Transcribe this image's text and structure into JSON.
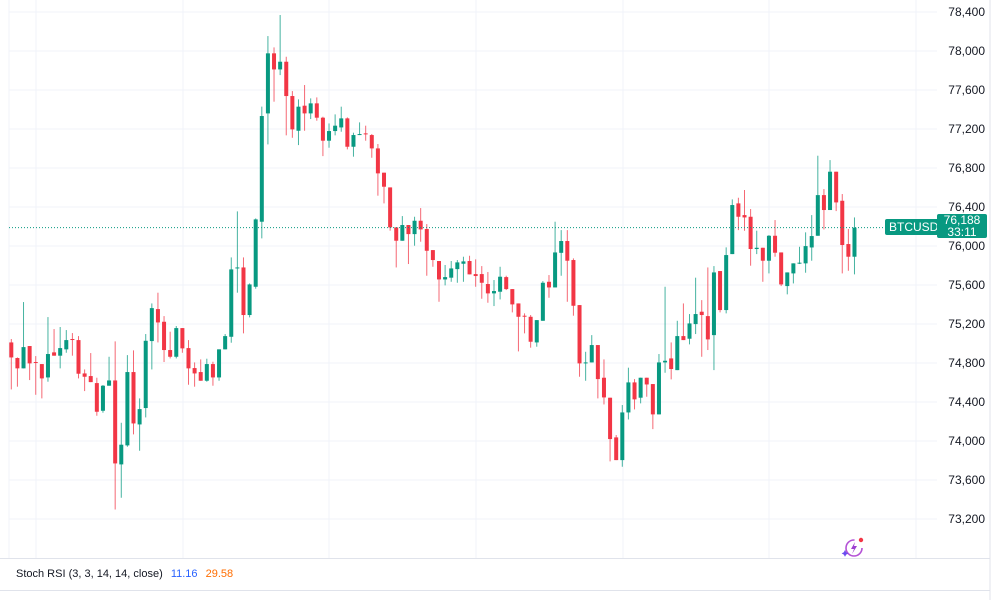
{
  "chart_data": {
    "type": "candlestick",
    "symbol": "BTCUSD",
    "last_price": "76,188",
    "countdown": "33:11",
    "ylim": [
      73200,
      78400
    ],
    "y_ticks": [
      "78,400",
      "78,000",
      "77,600",
      "77,200",
      "76,800",
      "76,400",
      "76,000",
      "75,600",
      "75,200",
      "74,800",
      "74,400",
      "74,000",
      "73,600",
      "73,200"
    ],
    "grid": true,
    "colors": {
      "up": "#089981",
      "down": "#F23645"
    },
    "ohlc": [
      [
        75011,
        75046,
        74529,
        74857
      ],
      [
        74851,
        74857,
        74557,
        74745
      ],
      [
        74745,
        75425,
        74745,
        74963
      ],
      [
        74974,
        74974,
        74625,
        74796
      ],
      [
        74810,
        74871,
        74474,
        74803
      ],
      [
        74789,
        74789,
        74437,
        74642
      ],
      [
        74652,
        75271,
        74608,
        74892
      ],
      [
        74909,
        75148,
        74875,
        74875
      ],
      [
        74875,
        75169,
        74745,
        74953
      ],
      [
        74940,
        75138,
        74905,
        75035
      ],
      [
        75046,
        75107,
        74875,
        75039
      ],
      [
        75035,
        75076,
        74642,
        74690
      ],
      [
        74693,
        74734,
        74512,
        74659
      ],
      [
        74666,
        74902,
        74604,
        74604
      ],
      [
        74594,
        74649,
        74259,
        74300
      ],
      [
        74310,
        74574,
        74290,
        74567
      ],
      [
        74567,
        74864,
        74567,
        74621
      ],
      [
        74621,
        75022,
        73298,
        73770
      ],
      [
        73760,
        74187,
        73418,
        73962
      ],
      [
        73955,
        74881,
        73941,
        74707
      ],
      [
        74707,
        74929,
        74068,
        74180
      ],
      [
        74170,
        74437,
        73900,
        74327
      ],
      [
        74338,
        75097,
        74242,
        75028
      ],
      [
        75025,
        75411,
        74734,
        75363
      ],
      [
        75353,
        75521,
        75011,
        75216
      ],
      [
        75223,
        75281,
        74810,
        74933
      ],
      [
        74933,
        75121,
        74847,
        74864
      ],
      [
        74864,
        75179,
        74847,
        75158
      ],
      [
        75158,
        75158,
        74905,
        74950
      ],
      [
        74953,
        75035,
        74577,
        74745
      ],
      [
        74748,
        74806,
        74557,
        74693
      ],
      [
        74707,
        74837,
        74618,
        74618
      ],
      [
        74618,
        74844,
        74608,
        74789
      ],
      [
        74789,
        74813,
        74567,
        74652
      ],
      [
        74652,
        74940,
        74618,
        74940
      ],
      [
        74940,
        75097,
        74940,
        75076
      ],
      [
        75069,
        75883,
        75008,
        75760
      ],
      [
        75770,
        76355,
        75521,
        75780
      ],
      [
        75780,
        75883,
        75104,
        75292
      ],
      [
        75292,
        75616,
        75268,
        75606
      ],
      [
        75582,
        76283,
        75562,
        76273
      ],
      [
        76249,
        77429,
        76078,
        77333
      ],
      [
        77360,
        78153,
        77042,
        77976
      ],
      [
        77976,
        78037,
        77480,
        77811
      ],
      [
        77811,
        78369,
        77753,
        77890
      ],
      [
        77890,
        77941,
        77135,
        77538
      ],
      [
        77538,
        77589,
        77110,
        77196
      ],
      [
        77182,
        77504,
        77035,
        77429
      ],
      [
        77439,
        77651,
        77182,
        77360
      ],
      [
        77360,
        77514,
        77302,
        77463
      ],
      [
        77463,
        77524,
        77285,
        77316
      ],
      [
        77316,
        77326,
        76922,
        77080
      ],
      [
        77080,
        77257,
        77008,
        77179
      ],
      [
        77179,
        77350,
        77135,
        77234
      ],
      [
        77216,
        77429,
        77172,
        77309
      ],
      [
        77309,
        77319,
        76991,
        77018
      ],
      [
        77018,
        77162,
        76916,
        77138
      ],
      [
        77138,
        77268,
        77138,
        77148
      ],
      [
        77155,
        77234,
        77080,
        77148
      ],
      [
        77138,
        77148,
        76905,
        77001
      ],
      [
        77001,
        77046,
        76516,
        76745
      ],
      [
        76752,
        76752,
        76437,
        76608
      ],
      [
        76601,
        76601,
        76157,
        76191
      ],
      [
        76191,
        76191,
        75780,
        76054
      ],
      [
        76054,
        76307,
        76054,
        76215
      ],
      [
        76215,
        76215,
        75815,
        76122
      ],
      [
        76122,
        76300,
        76003,
        76259
      ],
      [
        76259,
        76389,
        76044,
        76170
      ],
      [
        76174,
        76225,
        75695,
        75951
      ],
      [
        75958,
        75958,
        75787,
        75856
      ],
      [
        75846,
        75846,
        75428,
        75657
      ],
      [
        75657,
        75805,
        75596,
        75681
      ],
      [
        75675,
        75846,
        75633,
        75770
      ],
      [
        75763,
        75856,
        75623,
        75832
      ],
      [
        75818,
        75890,
        75633,
        75842
      ],
      [
        75846,
        75900,
        75709,
        75709
      ],
      [
        75712,
        75863,
        75582,
        75692
      ],
      [
        75712,
        75794,
        75459,
        75623
      ],
      [
        75610,
        75733,
        75418,
        75514
      ],
      [
        75514,
        75651,
        75384,
        75538
      ],
      [
        75531,
        75787,
        75452,
        75685
      ],
      [
        75681,
        75695,
        75548,
        75558
      ],
      [
        75558,
        75558,
        75319,
        75401
      ],
      [
        75411,
        75411,
        74919,
        75274
      ],
      [
        75285,
        75309,
        75104,
        75281
      ],
      [
        75274,
        75292,
        74957,
        75018
      ],
      [
        75011,
        75240,
        74967,
        75240
      ],
      [
        75233,
        75640,
        75233,
        75623
      ],
      [
        75633,
        75702,
        75469,
        75575
      ],
      [
        75575,
        76249,
        75575,
        75934
      ],
      [
        75930,
        76163,
        75695,
        76051
      ],
      [
        76051,
        76163,
        75428,
        75849
      ],
      [
        75856,
        75873,
        75285,
        75387
      ],
      [
        75394,
        75394,
        74659,
        74796
      ],
      [
        74796,
        74915,
        74618,
        74806
      ],
      [
        74806,
        75086,
        74806,
        74984
      ],
      [
        74984,
        74984,
        74437,
        74635
      ],
      [
        74649,
        74837,
        74375,
        74447
      ],
      [
        74444,
        74444,
        73791,
        74020
      ],
      [
        74037,
        74061,
        73804,
        73804
      ],
      [
        73804,
        74369,
        73736,
        74293
      ],
      [
        74293,
        74752,
        74221,
        74601
      ],
      [
        74601,
        74635,
        74324,
        74427
      ],
      [
        74444,
        74649,
        74386,
        74649
      ],
      [
        74649,
        74649,
        74454,
        74580
      ],
      [
        74584,
        74584,
        74122,
        74273
      ],
      [
        74273,
        74892,
        74273,
        74806
      ],
      [
        74806,
        75582,
        74700,
        74823
      ],
      [
        74847,
        75011,
        74632,
        74738
      ],
      [
        74727,
        75233,
        74727,
        75076
      ],
      [
        75076,
        75411,
        75035,
        75035
      ],
      [
        75049,
        75302,
        74991,
        75206
      ],
      [
        75199,
        75675,
        75097,
        75302
      ],
      [
        75326,
        75445,
        74864,
        75292
      ],
      [
        75281,
        75780,
        74933,
        75042
      ],
      [
        75086,
        75794,
        74727,
        75729
      ],
      [
        75743,
        75743,
        75319,
        75343
      ],
      [
        75343,
        75986,
        75309,
        75907
      ],
      [
        75917,
        76478,
        75917,
        76420
      ],
      [
        76437,
        76495,
        76163,
        76300
      ],
      [
        76317,
        76574,
        76157,
        76293
      ],
      [
        76300,
        76379,
        75798,
        75969
      ],
      [
        75969,
        76157,
        75917,
        75982
      ],
      [
        75982,
        75982,
        75633,
        75849
      ],
      [
        75849,
        76112,
        75719,
        76105
      ],
      [
        76105,
        76266,
        75890,
        75931
      ],
      [
        75934,
        75934,
        75589,
        75606
      ],
      [
        75589,
        75729,
        75504,
        75729
      ],
      [
        75719,
        75822,
        75616,
        75822
      ],
      [
        75822,
        75992,
        75815,
        75829
      ],
      [
        75822,
        76140,
        75726,
        75999
      ],
      [
        75985,
        76317,
        75849,
        76102
      ],
      [
        76105,
        76926,
        76105,
        76522
      ],
      [
        76522,
        76584,
        76170,
        76369
      ],
      [
        76369,
        76881,
        76369,
        76762
      ],
      [
        76762,
        76762,
        76358,
        76447
      ],
      [
        76464,
        76533,
        75719,
        76010
      ],
      [
        76020,
        76174,
        75746,
        75890
      ],
      [
        75890,
        76293,
        75709,
        76188
      ]
    ]
  },
  "indicator": {
    "label": "Stoch RSI (3, 3, 14, 14, close)",
    "k_value": "11.16",
    "d_value": "29.58",
    "k_color": "#2962FF",
    "d_color": "#FF6D00"
  },
  "icons": {
    "assistant": "sparkle-lightning-icon"
  }
}
